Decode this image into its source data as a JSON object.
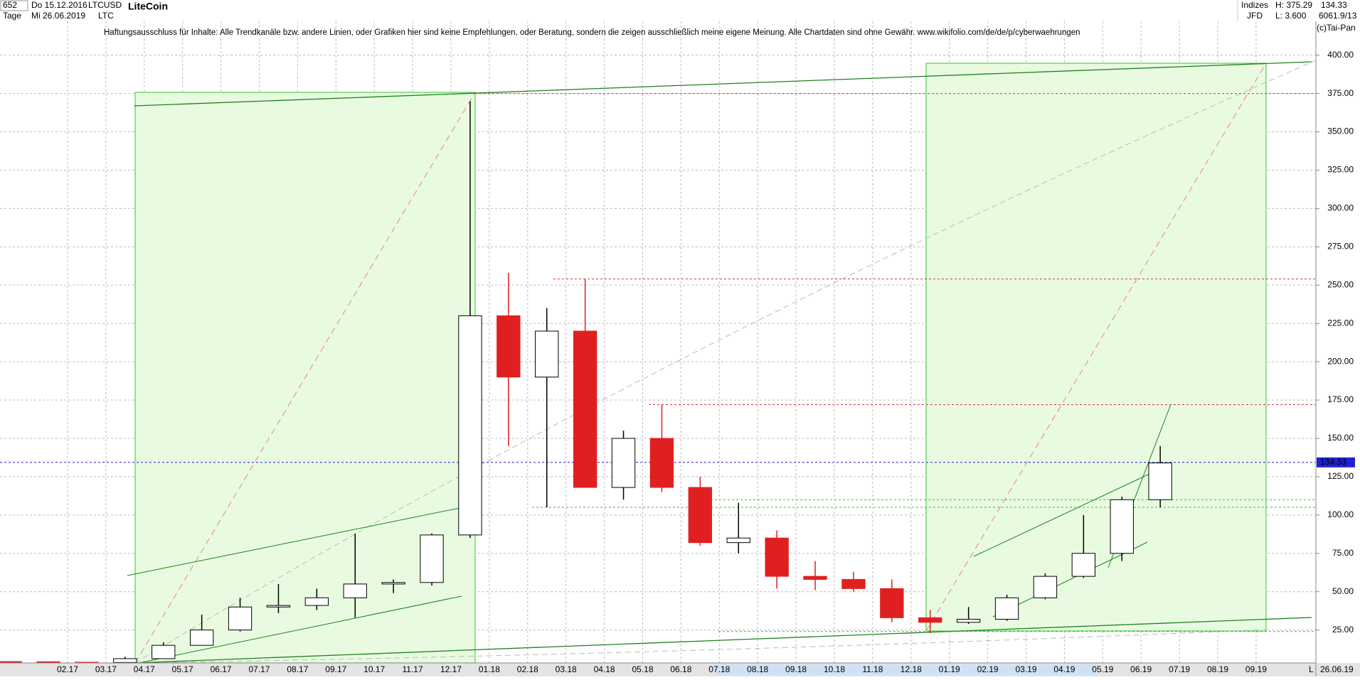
{
  "header": {
    "count": "652",
    "start": "Do 15.12.2016",
    "period": "Tage",
    "end": "Mi 26.06.2019",
    "symbol": "LTCUSD",
    "short": "LTC",
    "group": "Indizes",
    "source": "JFD",
    "high": "H: 375.29",
    "low": "L: 3.600",
    "last": "134.33",
    "extra": "6061.9/13",
    "copyright": "(c)Tai-Pan",
    "axis_mode": "L",
    "axis_end": "26.06.19"
  },
  "chart_data": {
    "type": "candlestick",
    "title": "LiteCoin",
    "subtitle": "Haftungsausschluss für Inhalte: Alle Trendkanäle bzw. andere Linien, oder Grafiken hier sind keine Empfehlungen, oder Beratung, sondern die zeigen ausschließlich meine eigene Meinung. Alle Chartdaten sind ohne Gewähr.  www.wikifolio.com/de/de/p/cyberwaehrungen",
    "categories": [
      null,
      null,
      "02.17",
      "03.17",
      "04.17",
      "05.17",
      "06.17",
      "07.17",
      "08.17",
      "09.17",
      "10.17",
      "11.17",
      "12.17",
      "01.18",
      "02.18",
      "03.18",
      "04.18",
      "05.18",
      "06.18",
      "07.18",
      "08.18",
      "09.18",
      "10.18",
      "11.18",
      "12.18",
      "01.19",
      "02.19",
      "03.19",
      "04.19",
      "05.19",
      "06.19",
      "07.19",
      "08.19",
      "09.19"
    ],
    "open": [
      4.4,
      4.3,
      4.0,
      3.8,
      6.3,
      15,
      25,
      40,
      41,
      46,
      55,
      56,
      87,
      230,
      190,
      220,
      118,
      150,
      118,
      82,
      85,
      60,
      58,
      52,
      33,
      30,
      32,
      46,
      60,
      75,
      110,
      null,
      null,
      null
    ],
    "high": [
      4.7,
      4.5,
      4.1,
      7.5,
      17,
      35,
      46,
      55,
      52,
      88,
      58,
      88,
      370,
      258,
      235,
      254,
      155,
      172,
      125,
      108,
      90,
      70,
      63,
      58,
      38,
      40,
      48,
      62,
      100,
      112,
      145,
      null,
      null,
      null
    ],
    "low": [
      4.1,
      3.8,
      3.7,
      3.6,
      6.2,
      15,
      24,
      36,
      38,
      33,
      49,
      54,
      85,
      145,
      105,
      118,
      110,
      115,
      80,
      75,
      52,
      51,
      50,
      30,
      23,
      29,
      31,
      45,
      59,
      70,
      105,
      null,
      null,
      null
    ],
    "close": [
      4.3,
      4.0,
      3.8,
      6.3,
      15,
      25,
      40,
      41,
      46,
      55,
      56,
      87,
      230,
      190,
      220,
      118,
      150,
      118,
      82,
      85,
      60,
      58,
      52,
      33,
      30,
      32,
      46,
      60,
      75,
      110,
      134,
      null,
      null,
      null
    ],
    "up_color": "#000000",
    "down_color": "#e02020",
    "ylim": [
      3.5,
      436
    ],
    "yticks": [
      {
        "value": 25,
        "label": "25.00"
      },
      {
        "value": 50,
        "label": "50.00"
      },
      {
        "value": 75,
        "label": "75.00"
      },
      {
        "value": 100,
        "label": "100.00"
      },
      {
        "value": 125,
        "label": "125.00"
      },
      {
        "value": 150,
        "label": "150.00"
      },
      {
        "value": 175,
        "label": "175.00"
      },
      {
        "value": 200,
        "label": "200.00"
      },
      {
        "value": 225,
        "label": "225.00"
      },
      {
        "value": 250,
        "label": "250.00"
      },
      {
        "value": 275,
        "label": "275.00"
      },
      {
        "value": 300,
        "label": "300.00"
      },
      {
        "value": 325,
        "label": "325.00"
      },
      {
        "value": 350,
        "label": "350.00"
      },
      {
        "value": 375,
        "label": "375.00"
      },
      {
        "value": 400,
        "label": "400.00"
      }
    ],
    "grid": true,
    "levels": [
      {
        "value": 375,
        "color": "#e03030"
      },
      {
        "value": 254,
        "color": "#e03030"
      },
      {
        "value": 172,
        "color": "#e03030"
      },
      {
        "value": 134.33,
        "color": "#2020d0"
      },
      {
        "value": 110,
        "color": "#30c030"
      },
      {
        "value": 105,
        "color": "#30c030"
      },
      {
        "value": 24,
        "color": "#30c030"
      }
    ]
  }
}
